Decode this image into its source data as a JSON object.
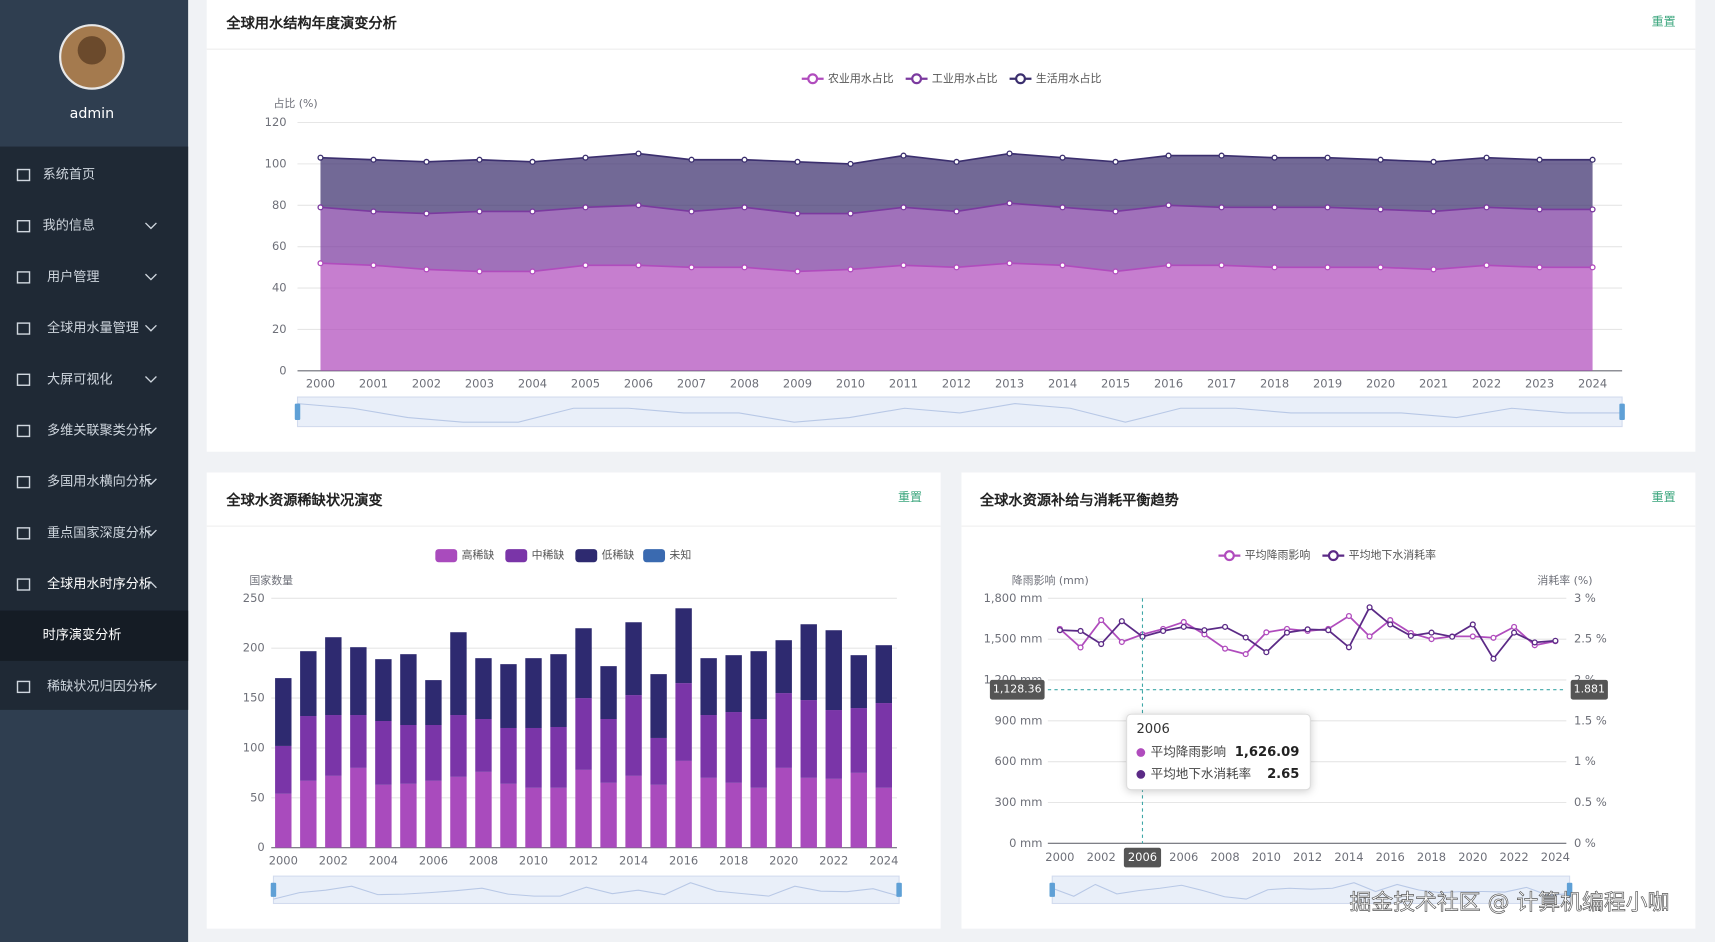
{
  "sidebar": {
    "user": "admin",
    "menu": [
      {
        "label": "系统首页"
      },
      {
        "label": "我的信息",
        "expandable": true
      },
      {
        "label": "用户管理",
        "expandable": true
      },
      {
        "label": "全球用水量管理",
        "expandable": true
      },
      {
        "label": "大屏可视化",
        "expandable": true
      },
      {
        "label": "多维关联聚类分析",
        "expandable": true
      },
      {
        "label": "多国用水横向分析",
        "expandable": true
      },
      {
        "label": "重点国家深度分析",
        "expandable": true
      },
      {
        "label": "全球用水时序分析",
        "expandable": true,
        "expanded": true,
        "children": [
          {
            "label": "时序演变分析",
            "active": true
          }
        ]
      },
      {
        "label": "稀缺状况归因分析",
        "expandable": true
      }
    ]
  },
  "chart_data": [
    {
      "type": "area",
      "title": "全球用水结构年度演变分析",
      "reset": "重置",
      "y_label": "占比 (%)",
      "categories": [
        "2000",
        "2001",
        "2002",
        "2003",
        "2004",
        "2005",
        "2006",
        "2007",
        "2008",
        "2009",
        "2010",
        "2011",
        "2012",
        "2013",
        "2014",
        "2015",
        "2016",
        "2017",
        "2018",
        "2019",
        "2020",
        "2021",
        "2022",
        "2023",
        "2024"
      ],
      "series": [
        {
          "name": "农业用水占比",
          "color": "#b04cbd",
          "values": [
            52,
            51,
            49,
            48,
            48,
            51,
            51,
            50,
            50,
            48,
            49,
            51,
            50,
            52,
            51,
            48,
            51,
            51,
            50,
            50,
            50,
            49,
            51,
            50,
            50
          ]
        },
        {
          "name": "工业用水占比",
          "color": "#7b3a9f",
          "values": [
            27,
            26,
            27,
            29,
            29,
            28,
            29,
            27,
            29,
            28,
            27,
            28,
            27,
            29,
            28,
            29,
            29,
            28,
            29,
            29,
            28,
            28,
            28,
            28,
            28
          ]
        },
        {
          "name": "生活用水占比",
          "color": "#3b2f6e",
          "values": [
            24,
            25,
            25,
            25,
            24,
            24,
            25,
            25,
            23,
            25,
            24,
            25,
            24,
            24,
            24,
            24,
            24,
            25,
            24,
            24,
            24,
            24,
            24,
            24,
            24
          ]
        }
      ],
      "stacked": true,
      "ylim": [
        0,
        120
      ],
      "yticks": [
        0,
        20,
        40,
        60,
        80,
        100,
        120
      ],
      "grid": true
    },
    {
      "type": "bar",
      "title": "全球水资源稀缺状况演变",
      "reset": "重置",
      "y_label": "国家数量",
      "categories": [
        "2000",
        null,
        "2002",
        null,
        "2004",
        null,
        "2006",
        null,
        "2008",
        null,
        "2010",
        null,
        "2012",
        null,
        "2014",
        null,
        "2016",
        null,
        "2018",
        null,
        "2020",
        null,
        "2022",
        null,
        "2024"
      ],
      "series": [
        {
          "name": "高稀缺",
          "color": "#a94bbd",
          "values": [
            54,
            67,
            72,
            80,
            63,
            64,
            67,
            71,
            76,
            64,
            60,
            60,
            78,
            65,
            72,
            63,
            87,
            70,
            65,
            60,
            80,
            70,
            69,
            75,
            60
          ]
        },
        {
          "name": "中稀缺",
          "color": "#7a35a8",
          "values": [
            48,
            65,
            61,
            53,
            64,
            59,
            56,
            62,
            53,
            56,
            60,
            61,
            72,
            64,
            81,
            47,
            78,
            63,
            71,
            69,
            75,
            78,
            69,
            65,
            85
          ]
        },
        {
          "name": "低稀缺",
          "color": "#2e2a70",
          "values": [
            68,
            65,
            78,
            68,
            62,
            71,
            45,
            83,
            61,
            64,
            70,
            73,
            70,
            53,
            73,
            64,
            75,
            57,
            57,
            68,
            53,
            76,
            80,
            53,
            58
          ]
        },
        {
          "name": "未知",
          "color": "#3a6ab0",
          "values": [
            0,
            0,
            0,
            0,
            0,
            0,
            0,
            0,
            0,
            0,
            0,
            0,
            0,
            0,
            0,
            0,
            0,
            0,
            0,
            0,
            0,
            0,
            0,
            0,
            0
          ]
        }
      ],
      "stacked": true,
      "ylim": [
        0,
        250
      ],
      "yticks": [
        0,
        50,
        100,
        150,
        200,
        250
      ],
      "grid": true
    },
    {
      "type": "line",
      "title": "全球水资源补给与消耗平衡趋势",
      "reset": "重置",
      "y_label": "降雨影响 (mm)",
      "y2_label": "消耗率 (%)",
      "categories": [
        "2000",
        null,
        "2002",
        null,
        null,
        null,
        "2006",
        null,
        "2008",
        null,
        "2010",
        null,
        "2012",
        null,
        "2014",
        null,
        "2016",
        null,
        "2018",
        null,
        "2020",
        null,
        "2022",
        null,
        "2024"
      ],
      "series": [
        {
          "name": "平均降雨影响",
          "color": "#b04cbd",
          "values": [
            1575,
            1439,
            1640,
            1479,
            1535,
            1575,
            1626.09,
            1535,
            1430,
            1390,
            1550,
            1575,
            1560,
            1575,
            1670,
            1520,
            1640,
            1545,
            1500,
            1520,
            1520,
            1510,
            1590,
            1455,
            1485
          ]
        },
        {
          "name": "平均地下水消耗率",
          "color": "#5b2a86",
          "axis": "y2",
          "values": [
            2.61,
            2.6,
            2.44,
            2.72,
            2.53,
            2.6,
            2.65,
            2.61,
            2.65,
            2.52,
            2.34,
            2.58,
            2.62,
            2.61,
            2.4,
            2.89,
            2.68,
            2.54,
            2.58,
            2.53,
            2.68,
            2.26,
            2.58,
            2.46,
            2.48
          ]
        }
      ],
      "ylim": [
        0,
        1800
      ],
      "yticks": [
        {
          "value": 0,
          "label": "0 mm"
        },
        {
          "value": 300,
          "label": "300 mm"
        },
        {
          "value": 600,
          "label": "600 mm"
        },
        {
          "value": 900,
          "label": "900 mm"
        },
        {
          "value": 1200,
          "label": "1,200 mm"
        },
        {
          "value": 1500,
          "label": "1,500 mm"
        },
        {
          "value": 1800,
          "label": "1,800 mm"
        }
      ],
      "y2lim": [
        0,
        3
      ],
      "y2ticks": [
        {
          "value": 0,
          "label": "0 %"
        },
        {
          "value": 0.5,
          "label": "0.5 %"
        },
        {
          "value": 1,
          "label": "1 %"
        },
        {
          "value": 1.5,
          "label": "1.5 %"
        },
        {
          "value": 2,
          "label": "2 %"
        },
        {
          "value": 2.5,
          "label": "2.5 %"
        },
        {
          "value": 3,
          "label": "3 %"
        }
      ],
      "grid": true,
      "axis_pointer": {
        "x": "2006",
        "y": {
          "value": 1128.36,
          "label": "1,128.36"
        },
        "y2": 1.881
      },
      "tooltip": {
        "title": "2006",
        "items": [
          {
            "name": "平均降雨影响",
            "color": "#b04cbd",
            "value": {
              "value": 1626.09,
              "label": "1,626.09"
            }
          },
          {
            "name": "平均地下水消耗率",
            "color": "#5b2a86",
            "value": 2.65
          }
        ]
      }
    }
  ],
  "watermark": "掘金技术社区 @ 计算机编程小咖"
}
